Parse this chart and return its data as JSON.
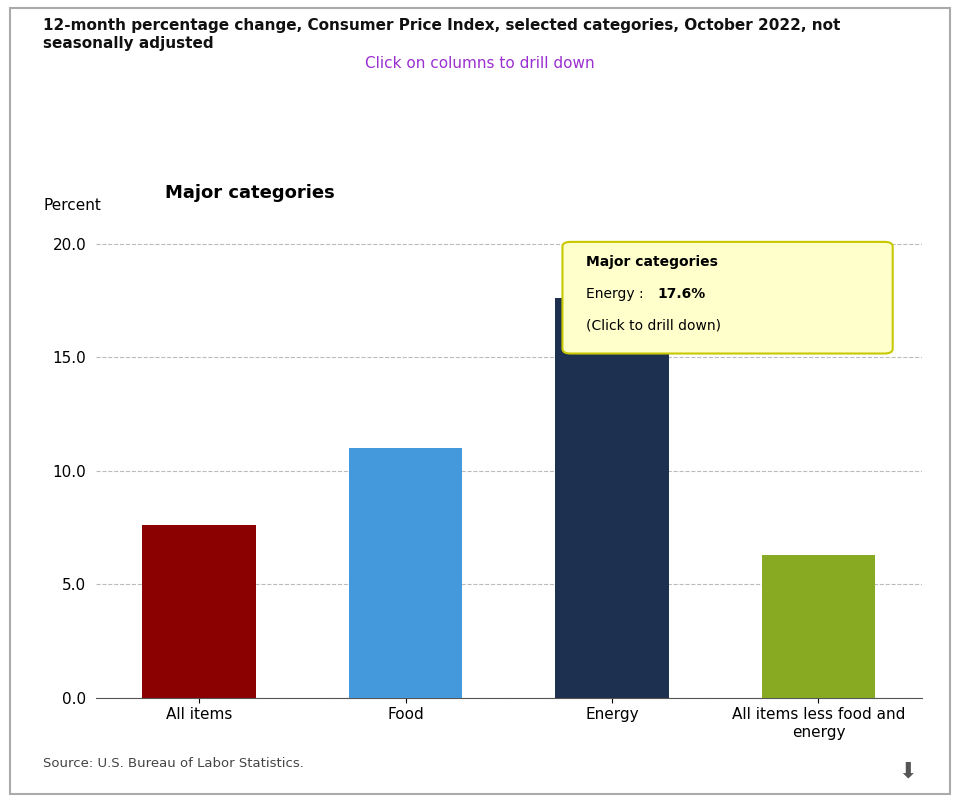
{
  "title_line1": "12-month percentage change, Consumer Price Index, selected categories, October 2022, not",
  "title_line2": "seasonally adjusted",
  "subtitle": "Click on columns to drill down",
  "subtitle_color": "#9b30d0",
  "chart_title": "Major categories",
  "categories": [
    "All items",
    "Food",
    "Energy",
    "All items less food and\nenergy"
  ],
  "values": [
    7.6,
    11.0,
    17.6,
    6.3
  ],
  "bar_colors": [
    "#8b0000",
    "#4499dd",
    "#1e3050",
    "#88aa22"
  ],
  "ylabel": "Percent",
  "ylim": [
    0,
    20.5
  ],
  "yticks": [
    0.0,
    5.0,
    10.0,
    15.0,
    20.0
  ],
  "background_color": "#ffffff",
  "tooltip_title": "Major categories",
  "tooltip_energy_label": "Energy : ",
  "tooltip_value": "17.6%",
  "tooltip_line2": "(Click to drill down)",
  "source": "Source: U.S. Bureau of Labor Statistics.",
  "grid_color": "#bbbbbb"
}
